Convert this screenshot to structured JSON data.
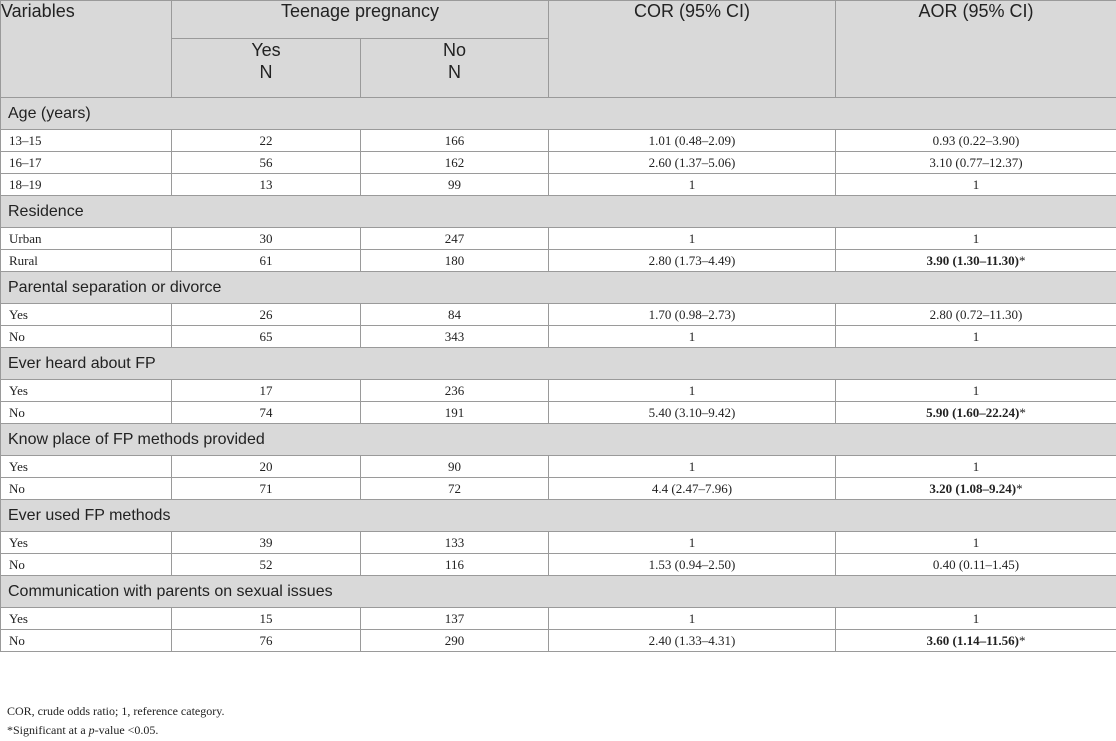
{
  "header": {
    "variables": "Variables",
    "group": "Teenage pregnancy",
    "cor": "COR (95% CI)",
    "aor": "AOR (95% CI)",
    "yes": "Yes",
    "no": "No",
    "n": "N"
  },
  "sections": [
    {
      "title": "Age (years)",
      "rows": [
        {
          "var": "13–15",
          "yes": "22",
          "no": "166",
          "cor": "1.01 (0.48–2.09)",
          "aor": "0.93 (0.22–3.90)",
          "aor_bold": false
        },
        {
          "var": "16–17",
          "yes": "56",
          "no": "162",
          "cor": "2.60 (1.37–5.06)",
          "aor": "3.10 (0.77–12.37)",
          "aor_bold": false
        },
        {
          "var": "18–19",
          "yes": "13",
          "no": "99",
          "cor": "1",
          "aor": "1",
          "aor_bold": false
        }
      ]
    },
    {
      "title": "Residence",
      "rows": [
        {
          "var": "Urban",
          "yes": "30",
          "no": "247",
          "cor": "1",
          "aor": "1",
          "aor_bold": false
        },
        {
          "var": "Rural",
          "yes": "61",
          "no": "180",
          "cor": "2.80 (1.73–4.49)",
          "aor": "3.90 (1.30–11.30)",
          "aor_bold": true
        }
      ]
    },
    {
      "title": "Parental separation or divorce",
      "rows": [
        {
          "var": "Yes",
          "yes": "26",
          "no": "84",
          "cor": "1.70 (0.98–2.73)",
          "aor": "2.80 (0.72–11.30)",
          "aor_bold": false
        },
        {
          "var": "No",
          "yes": "65",
          "no": "343",
          "cor": "1",
          "aor": "1",
          "aor_bold": false
        }
      ]
    },
    {
      "title": "Ever heard about FP",
      "rows": [
        {
          "var": "Yes",
          "yes": "17",
          "no": "236",
          "cor": "1",
          "aor": "1",
          "aor_bold": false
        },
        {
          "var": "No",
          "yes": "74",
          "no": "191",
          "cor": "5.40 (3.10–9.42)",
          "aor": "5.90 (1.60–22.24)",
          "aor_bold": true
        }
      ]
    },
    {
      "title": "Know place of FP methods provided",
      "rows": [
        {
          "var": "Yes",
          "yes": "20",
          "no": "90",
          "cor": "1",
          "aor": "1",
          "aor_bold": false
        },
        {
          "var": "No",
          "yes": "71",
          "no": "72",
          "cor": "4.4 (2.47–7.96)",
          "aor": "3.20 (1.08–9.24)",
          "aor_bold": true
        }
      ]
    },
    {
      "title": "Ever used FP methods",
      "rows": [
        {
          "var": "Yes",
          "yes": "39",
          "no": "133",
          "cor": "1",
          "aor": "1",
          "aor_bold": false
        },
        {
          "var": "No",
          "yes": "52",
          "no": "116",
          "cor": "1.53 (0.94–2.50)",
          "aor": "0.40 (0.11–1.45)",
          "aor_bold": false
        }
      ]
    },
    {
      "title": "Communication with parents on sexual issues",
      "rows": [
        {
          "var": "Yes",
          "yes": "15",
          "no": "137",
          "cor": "1",
          "aor": "1",
          "aor_bold": false
        },
        {
          "var": "No",
          "yes": "76",
          "no": "290",
          "cor": "2.40 (1.33–4.31)",
          "aor": "3.60 (1.14–11.56)",
          "aor_bold": true
        }
      ]
    }
  ],
  "significance_mark": "*",
  "footnotes": {
    "line1": "COR, crude odds ratio; 1, reference category.",
    "line2_prefix": "*Significant at a ",
    "line2_italic": "p",
    "line2_suffix": "-value <0.05."
  },
  "colors": {
    "header_bg": "#d9d9d9",
    "border": "#9a9a9a",
    "text": "#222222"
  }
}
